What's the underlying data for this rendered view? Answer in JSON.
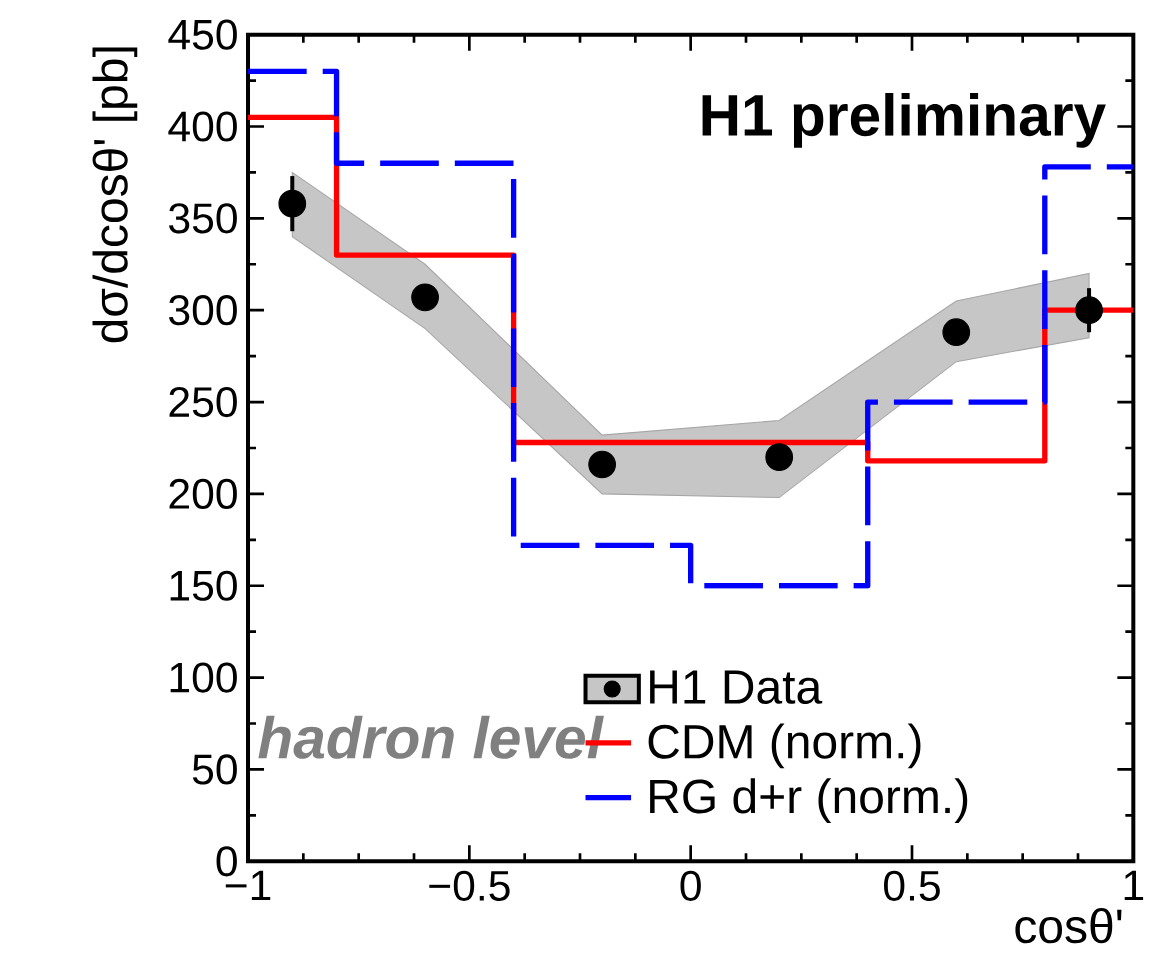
{
  "chart_data": {
    "type": "scatter",
    "xlabel": "cosθ'",
    "ylabel": "dσ/dcosθ' [pb]",
    "annotations": [
      "H1 preliminary",
      "hadron level"
    ],
    "xlim": [
      -1,
      1
    ],
    "ylim": [
      0,
      450
    ],
    "xticks": [
      {
        "value": -1,
        "label": "−1"
      },
      {
        "value": -0.5,
        "label": "−0.5"
      },
      0,
      0.5,
      1
    ],
    "yticks": [
      0,
      50,
      100,
      150,
      200,
      250,
      300,
      350,
      400,
      450
    ],
    "legend": "bottom",
    "grid": false,
    "series": [
      {
        "name": "H1 Data",
        "color": "#000000",
        "marker": "circle",
        "x": [
          -0.9,
          -0.6,
          -0.2,
          0.2,
          0.6,
          0.9
        ],
        "values": [
          358,
          307,
          216,
          220,
          288,
          300
        ],
        "errors": [
          15,
          6,
          6,
          6,
          6,
          12
        ],
        "lower": [
          340,
          290,
          200,
          198,
          272,
          285
        ],
        "upper": [
          375,
          325,
          232,
          240,
          305,
          320
        ]
      },
      {
        "name": "CDM (norm.)",
        "type": "step",
        "color": "#ff0000",
        "line_style": "solid",
        "x": [
          -1,
          -0.8,
          -0.4,
          0,
          0.4,
          0.8,
          1
        ],
        "values": [
          405,
          330,
          228,
          228,
          218,
          300,
          300
        ]
      },
      {
        "name": "RG d+r (norm.)",
        "type": "step",
        "color": "#0000ff",
        "line_style": "dashed",
        "x": [
          -1,
          -0.8,
          -0.4,
          0,
          0.4,
          0.8,
          1
        ],
        "values": [
          430,
          380,
          172,
          150,
          250,
          378,
          378
        ]
      }
    ]
  }
}
